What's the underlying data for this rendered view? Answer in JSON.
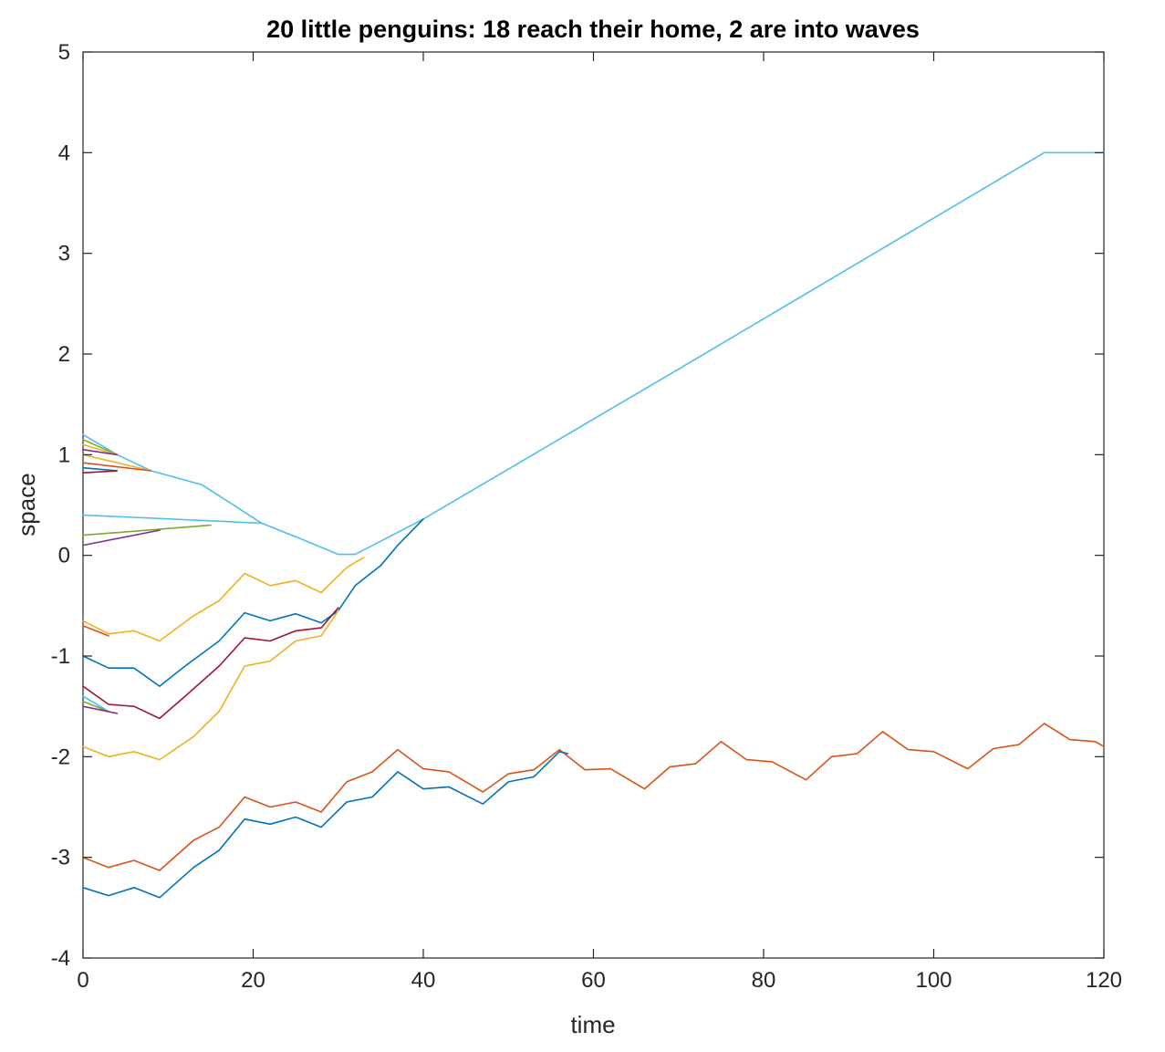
{
  "chart_data": {
    "type": "line",
    "title": "20 little penguins: 18 reach their home, 2 are into waves",
    "xlabel": "time",
    "ylabel": "space",
    "xlim": [
      0,
      120
    ],
    "ylim": [
      -4,
      5
    ],
    "xticks": [
      "0",
      "20",
      "40",
      "60",
      "80",
      "100",
      "120"
    ],
    "yticks": [
      "-4",
      "-3",
      "-2",
      "-1",
      "0",
      "1",
      "2",
      "3",
      "4",
      "5"
    ],
    "grid": false,
    "legend": "none",
    "series": [
      {
        "color": "#4DBEEE",
        "points": [
          [
            0,
            1.2
          ],
          [
            4,
            1.0
          ],
          [
            8,
            0.84
          ],
          [
            14,
            0.7
          ],
          [
            21,
            0.32
          ],
          [
            26,
            0.15
          ],
          [
            30,
            0.01
          ],
          [
            32,
            0.01
          ],
          [
            40,
            0.36
          ],
          [
            70,
            1.85
          ],
          [
            113,
            4.0
          ],
          [
            120,
            4.0
          ]
        ]
      },
      {
        "color": "#77AC30",
        "points": [
          [
            0,
            1.15
          ],
          [
            4,
            1.0
          ]
        ]
      },
      {
        "color": "#EDB120",
        "points": [
          [
            0,
            1.1
          ],
          [
            4,
            1.0
          ]
        ]
      },
      {
        "color": "#7E2F8E",
        "points": [
          [
            0,
            1.05
          ],
          [
            4,
            1.0
          ]
        ]
      },
      {
        "color": "#EDB120",
        "points": [
          [
            0,
            1.0
          ],
          [
            8,
            0.84
          ]
        ]
      },
      {
        "color": "#D95319",
        "points": [
          [
            0,
            0.92
          ],
          [
            8,
            0.84
          ]
        ]
      },
      {
        "color": "#0072BD",
        "points": [
          [
            0,
            0.87
          ],
          [
            4,
            0.84
          ]
        ]
      },
      {
        "color": "#A2142F",
        "points": [
          [
            0,
            0.82
          ],
          [
            4,
            0.84
          ]
        ]
      },
      {
        "color": "#4DBEEE",
        "points": [
          [
            0,
            0.4
          ],
          [
            21,
            0.32
          ]
        ]
      },
      {
        "color": "#77AC30",
        "points": [
          [
            0,
            0.2
          ],
          [
            15,
            0.3
          ]
        ]
      },
      {
        "color": "#7E2F8E",
        "points": [
          [
            0,
            0.1
          ],
          [
            9,
            0.25
          ]
        ]
      },
      {
        "color": "#EDB120",
        "points": [
          [
            0,
            -0.65
          ],
          [
            3,
            -0.78
          ],
          [
            6,
            -0.75
          ],
          [
            9,
            -0.85
          ],
          [
            13,
            -0.6
          ],
          [
            16,
            -0.45
          ],
          [
            19,
            -0.18
          ],
          [
            22,
            -0.3
          ],
          [
            25,
            -0.25
          ],
          [
            28,
            -0.37
          ],
          [
            31,
            -0.12
          ],
          [
            33,
            -0.02
          ]
        ]
      },
      {
        "color": "#D95319",
        "points": [
          [
            0,
            -0.7
          ],
          [
            3,
            -0.8
          ]
        ]
      },
      {
        "color": "#0072BD",
        "points": [
          [
            0,
            -1.0
          ],
          [
            3,
            -1.12
          ],
          [
            6,
            -1.12
          ],
          [
            9,
            -1.3
          ],
          [
            12,
            -1.1
          ],
          [
            16,
            -0.85
          ],
          [
            19,
            -0.57
          ],
          [
            22,
            -0.65
          ],
          [
            25,
            -0.58
          ],
          [
            28,
            -0.67
          ],
          [
            30,
            -0.55
          ],
          [
            32,
            -0.3
          ],
          [
            35,
            -0.1
          ],
          [
            37,
            0.1
          ],
          [
            40,
            0.36
          ]
        ]
      },
      {
        "color": "#A2142F",
        "points": [
          [
            0,
            -1.3
          ],
          [
            3,
            -1.48
          ],
          [
            6,
            -1.5
          ],
          [
            9,
            -1.62
          ],
          [
            12,
            -1.4
          ],
          [
            16,
            -1.1
          ],
          [
            19,
            -0.82
          ],
          [
            22,
            -0.85
          ],
          [
            25,
            -0.75
          ],
          [
            28,
            -0.72
          ],
          [
            30,
            -0.52
          ]
        ]
      },
      {
        "color": "#4DBEEE",
        "points": [
          [
            0,
            -1.4
          ],
          [
            3,
            -1.55
          ]
        ]
      },
      {
        "color": "#77AC30",
        "points": [
          [
            0,
            -1.45
          ],
          [
            3,
            -1.55
          ]
        ]
      },
      {
        "color": "#7E2F8E",
        "points": [
          [
            0,
            -1.5
          ],
          [
            4,
            -1.57
          ]
        ]
      },
      {
        "color": "#EDB120",
        "points": [
          [
            0,
            -1.9
          ],
          [
            3,
            -2.0
          ],
          [
            6,
            -1.95
          ],
          [
            9,
            -2.03
          ],
          [
            13,
            -1.8
          ],
          [
            16,
            -1.55
          ],
          [
            19,
            -1.1
          ],
          [
            22,
            -1.05
          ],
          [
            25,
            -0.85
          ],
          [
            28,
            -0.8
          ],
          [
            30,
            -0.55
          ]
        ]
      },
      {
        "color": "#D95319",
        "points": [
          [
            0,
            -3.0
          ],
          [
            3,
            -3.1
          ],
          [
            6,
            -3.03
          ],
          [
            9,
            -3.13
          ],
          [
            13,
            -2.83
          ],
          [
            16,
            -2.7
          ],
          [
            19,
            -2.4
          ],
          [
            22,
            -2.5
          ],
          [
            25,
            -2.45
          ],
          [
            28,
            -2.55
          ],
          [
            31,
            -2.25
          ],
          [
            34,
            -2.15
          ],
          [
            37,
            -1.93
          ],
          [
            40,
            -2.12
          ],
          [
            43,
            -2.15
          ],
          [
            47,
            -2.35
          ],
          [
            50,
            -2.17
          ],
          [
            53,
            -2.13
          ],
          [
            56,
            -1.93
          ],
          [
            59,
            -2.13
          ],
          [
            62,
            -2.12
          ],
          [
            66,
            -2.32
          ],
          [
            69,
            -2.1
          ],
          [
            72,
            -2.07
          ],
          [
            75,
            -1.85
          ],
          [
            78,
            -2.03
          ],
          [
            81,
            -2.05
          ],
          [
            85,
            -2.23
          ],
          [
            88,
            -2.0
          ],
          [
            91,
            -1.97
          ],
          [
            94,
            -1.75
          ],
          [
            97,
            -1.93
          ],
          [
            100,
            -1.95
          ],
          [
            104,
            -2.12
          ],
          [
            107,
            -1.92
          ],
          [
            110,
            -1.88
          ],
          [
            113,
            -1.67
          ],
          [
            116,
            -1.83
          ],
          [
            119,
            -1.85
          ],
          [
            120,
            -1.9
          ]
        ]
      },
      {
        "color": "#0072BD",
        "points": [
          [
            0,
            -3.3
          ],
          [
            3,
            -3.38
          ],
          [
            6,
            -3.3
          ],
          [
            9,
            -3.4
          ],
          [
            13,
            -3.1
          ],
          [
            16,
            -2.93
          ],
          [
            19,
            -2.62
          ],
          [
            22,
            -2.67
          ],
          [
            25,
            -2.6
          ],
          [
            28,
            -2.7
          ],
          [
            31,
            -2.45
          ],
          [
            34,
            -2.4
          ],
          [
            37,
            -2.15
          ],
          [
            40,
            -2.32
          ],
          [
            43,
            -2.3
          ],
          [
            47,
            -2.47
          ],
          [
            50,
            -2.25
          ],
          [
            53,
            -2.2
          ],
          [
            56,
            -1.95
          ],
          [
            57,
            -1.97
          ]
        ]
      }
    ]
  }
}
